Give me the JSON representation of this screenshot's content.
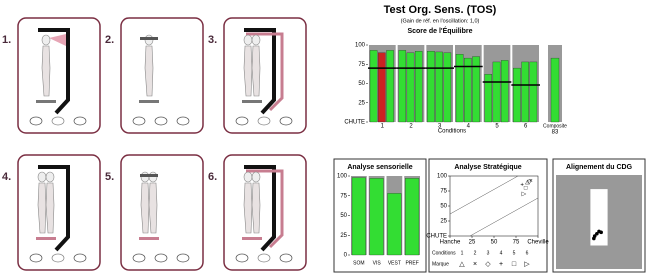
{
  "panels": [
    {
      "label": "1."
    },
    {
      "label": "2."
    },
    {
      "label": "3."
    },
    {
      "label": "4."
    },
    {
      "label": "5."
    },
    {
      "label": "6."
    }
  ],
  "chart_data": [
    {
      "type": "bar",
      "title": "Test Org. Sens. (TOS)",
      "subtitle": "(Gain de réf. en l'oscillation: 1,0)",
      "chart_title": "Score de l'Équilibre",
      "xlabel": "Conditions",
      "categories": [
        "1",
        "2",
        "3",
        "4",
        "5",
        "6"
      ],
      "values": [
        [
          93,
          90,
          93
        ],
        [
          93,
          90,
          92
        ],
        [
          92,
          91,
          90
        ],
        [
          88,
          83,
          85
        ],
        [
          62,
          78,
          80
        ],
        [
          70,
          78,
          78
        ]
      ],
      "colors": [
        [
          "#33dd33",
          "#cc2222",
          "#33dd33"
        ],
        [
          "#33dd33",
          "#33dd33",
          "#33dd33"
        ],
        [
          "#33dd33",
          "#33dd33",
          "#33dd33"
        ],
        [
          "#33dd33",
          "#33dd33",
          "#33dd33"
        ],
        [
          "#33dd33",
          "#33dd33",
          "#33dd33"
        ],
        [
          "#33dd33",
          "#33dd33",
          "#33dd33"
        ]
      ],
      "norms": [
        70,
        70,
        70,
        72,
        52,
        48
      ],
      "composite": {
        "label": "Composite",
        "value": 83
      },
      "ylim": [
        0,
        100
      ],
      "yticks": [
        {
          "value": 0,
          "label": "CHUTE"
        },
        25,
        50,
        75,
        100
      ]
    },
    {
      "type": "bar",
      "title": "Analyse sensorielle",
      "categories": [
        "SOM",
        "VIS",
        "VEST",
        "PREF"
      ],
      "values": [
        98,
        97,
        78,
        97
      ],
      "color": "#33dd33",
      "ylim": [
        0,
        100
      ],
      "yticks": [
        0,
        25,
        50,
        75,
        100
      ]
    },
    {
      "type": "scatter",
      "title": "Analyse Stratégique",
      "x": [
        88,
        92,
        90,
        82,
        86,
        84
      ],
      "y": [
        90,
        92,
        91,
        85,
        80,
        70
      ],
      "categories": [
        "1",
        "2",
        "3",
        "4",
        "5",
        "6"
      ],
      "markers": [
        "△",
        "×",
        "◇",
        "+",
        "□",
        "▷"
      ],
      "legend_conditions": "Conditions",
      "legend_markers": "Marque",
      "xlim": [
        0,
        100
      ],
      "xticks": [
        {
          "value": 0,
          "label": "Hanche"
        },
        25,
        50,
        75,
        {
          "value": 100,
          "label": "Cheville"
        }
      ],
      "ylim": [
        0,
        100
      ],
      "yticks": [
        {
          "value": 0,
          "label": "CHUTE"
        },
        25,
        50,
        75,
        100
      ]
    },
    {
      "type": "cdg",
      "title": "Alignement du CDG",
      "x": [
        -0.1,
        -0.05,
        0,
        -0.12,
        0.05
      ],
      "y": [
        -0.3,
        -0.25,
        -0.2,
        -0.35,
        -0.22
      ],
      "xlim": [
        -1,
        1
      ],
      "ylim": [
        -1,
        1
      ]
    }
  ]
}
